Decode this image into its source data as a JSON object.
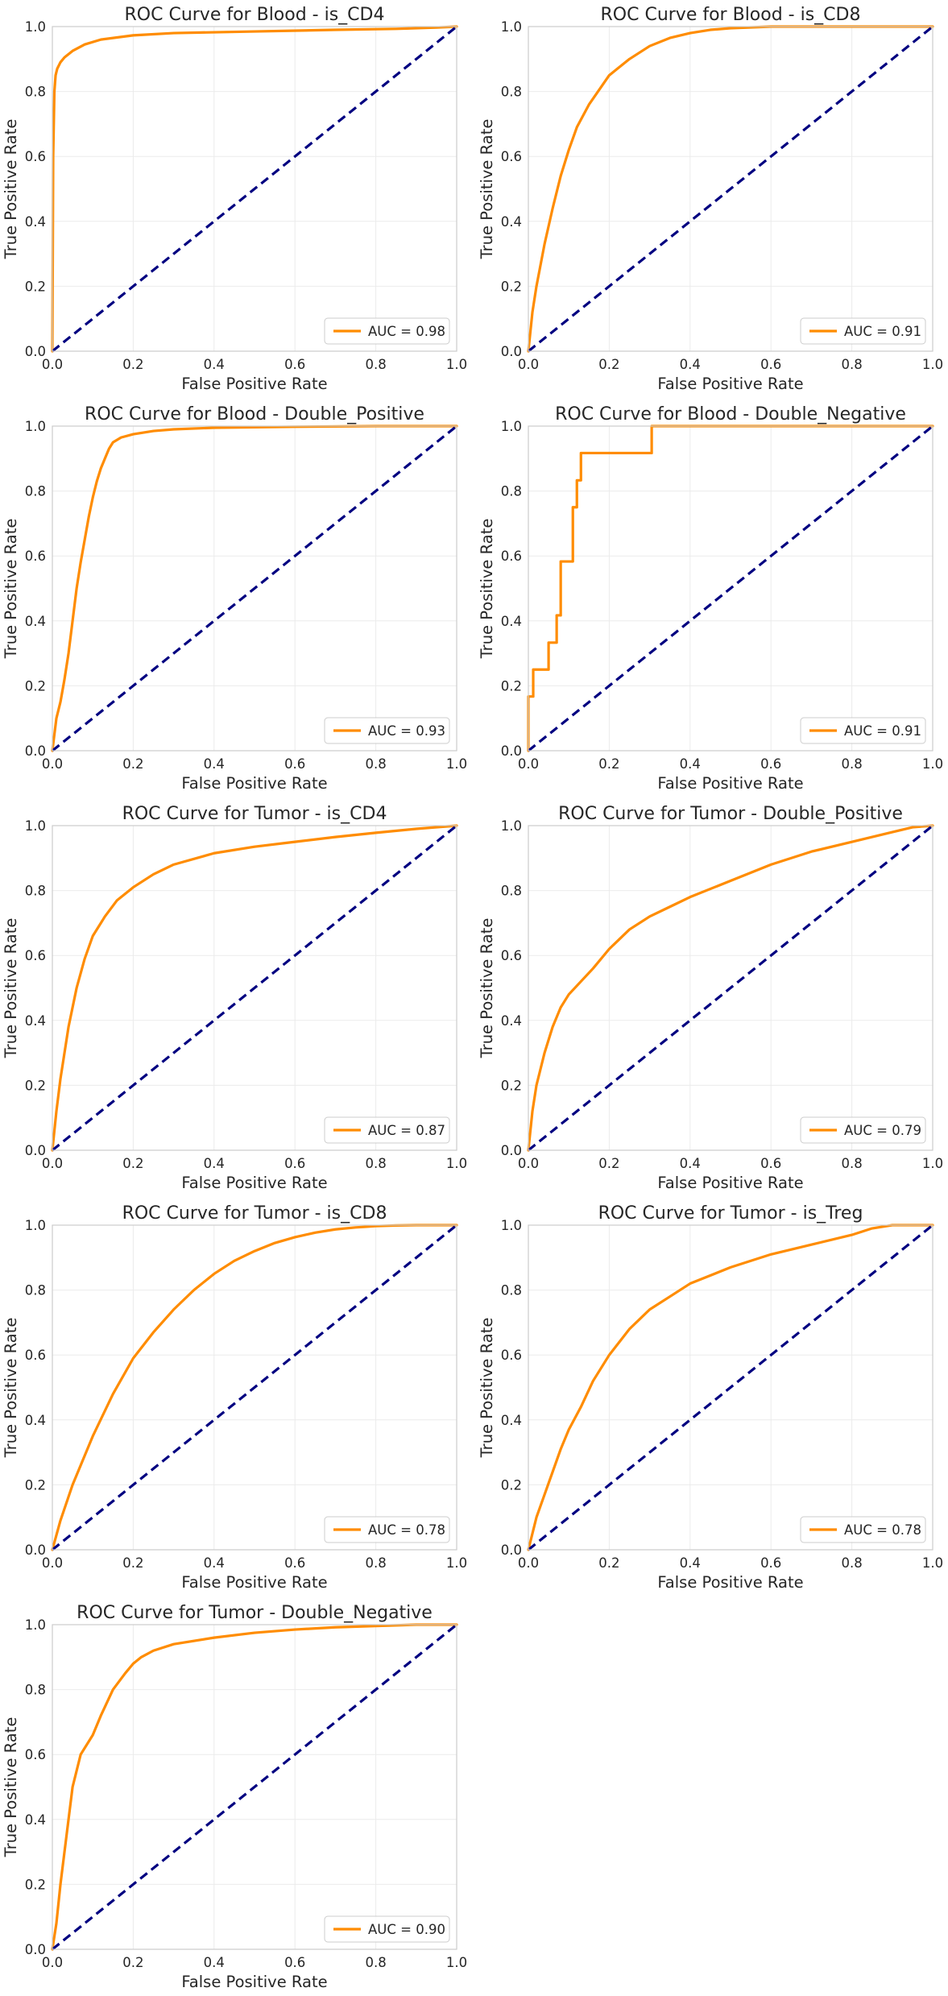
{
  "chart_data": [
    {
      "type": "line",
      "title": "ROC Curve for Blood - is_CD4",
      "xlabel": "False Positive Rate",
      "ylabel": "True Positive Rate",
      "xlim": [
        0,
        1
      ],
      "ylim": [
        0,
        1
      ],
      "xticks": [
        "0.0",
        "0.2",
        "0.4",
        "0.6",
        "0.8",
        "1.0"
      ],
      "yticks": [
        "0.0",
        "0.2",
        "0.4",
        "0.6",
        "0.8",
        "1.0"
      ],
      "grid": true,
      "legend_position": "lower-right",
      "series": [
        {
          "name": "AUC = 0.98",
          "color": "#ff8c00",
          "x": [
            0,
            0.002,
            0.005,
            0.008,
            0.012,
            0.02,
            0.03,
            0.05,
            0.08,
            0.12,
            0.2,
            0.3,
            0.5,
            0.7,
            0.85,
            0.95,
            1.0
          ],
          "y": [
            0,
            0.6,
            0.8,
            0.85,
            0.87,
            0.89,
            0.905,
            0.925,
            0.945,
            0.96,
            0.973,
            0.98,
            0.985,
            0.99,
            0.993,
            0.997,
            1.0
          ]
        },
        {
          "name": "",
          "color": "#000080",
          "style": "dashed",
          "x": [
            0,
            1
          ],
          "y": [
            0,
            1
          ]
        }
      ]
    },
    {
      "type": "line",
      "title": "ROC Curve for Blood - is_CD8",
      "xlabel": "False Positive Rate",
      "ylabel": "True Positive Rate",
      "xlim": [
        0,
        1
      ],
      "ylim": [
        0,
        1
      ],
      "xticks": [
        "0.0",
        "0.2",
        "0.4",
        "0.6",
        "0.8",
        "1.0"
      ],
      "yticks": [
        "0.0",
        "0.2",
        "0.4",
        "0.6",
        "0.8",
        "1.0"
      ],
      "grid": true,
      "legend_position": "lower-right",
      "series": [
        {
          "name": "AUC = 0.91",
          "color": "#ff8c00",
          "x": [
            0,
            0.01,
            0.02,
            0.04,
            0.06,
            0.08,
            0.1,
            0.12,
            0.15,
            0.2,
            0.25,
            0.3,
            0.35,
            0.4,
            0.45,
            0.5,
            0.6,
            0.8,
            1.0
          ],
          "y": [
            0,
            0.12,
            0.2,
            0.33,
            0.44,
            0.54,
            0.62,
            0.69,
            0.76,
            0.85,
            0.9,
            0.94,
            0.965,
            0.98,
            0.99,
            0.995,
            1.0,
            1.0,
            1.0
          ]
        },
        {
          "name": "",
          "color": "#000080",
          "style": "dashed",
          "x": [
            0,
            1
          ],
          "y": [
            0,
            1
          ]
        }
      ]
    },
    {
      "type": "line",
      "title": "ROC Curve for Blood - Double_Positive",
      "xlabel": "False Positive Rate",
      "ylabel": "True Positive Rate",
      "xlim": [
        0,
        1
      ],
      "ylim": [
        0,
        1
      ],
      "xticks": [
        "0.0",
        "0.2",
        "0.4",
        "0.6",
        "0.8",
        "1.0"
      ],
      "yticks": [
        "0.0",
        "0.2",
        "0.4",
        "0.6",
        "0.8",
        "1.0"
      ],
      "grid": true,
      "legend_position": "lower-right",
      "series": [
        {
          "name": "AUC = 0.93",
          "color": "#ff8c00",
          "x": [
            0,
            0.01,
            0.02,
            0.03,
            0.04,
            0.05,
            0.06,
            0.07,
            0.08,
            0.09,
            0.1,
            0.11,
            0.12,
            0.13,
            0.14,
            0.15,
            0.17,
            0.2,
            0.25,
            0.3,
            0.4,
            0.6,
            0.8,
            1.0
          ],
          "y": [
            0,
            0.1,
            0.15,
            0.22,
            0.3,
            0.4,
            0.5,
            0.58,
            0.65,
            0.72,
            0.78,
            0.83,
            0.87,
            0.9,
            0.93,
            0.95,
            0.965,
            0.975,
            0.985,
            0.99,
            0.995,
            0.998,
            1.0,
            1.0
          ]
        },
        {
          "name": "",
          "color": "#000080",
          "style": "dashed",
          "x": [
            0,
            1
          ],
          "y": [
            0,
            1
          ]
        }
      ]
    },
    {
      "type": "line",
      "title": "ROC Curve for Blood - Double_Negative",
      "xlabel": "False Positive Rate",
      "ylabel": "True Positive Rate",
      "xlim": [
        0,
        1
      ],
      "ylim": [
        0,
        1
      ],
      "xticks": [
        "0.0",
        "0.2",
        "0.4",
        "0.6",
        "0.8",
        "1.0"
      ],
      "yticks": [
        "0.0",
        "0.2",
        "0.4",
        "0.6",
        "0.8",
        "1.0"
      ],
      "grid": true,
      "legend_position": "lower-right",
      "series": [
        {
          "name": "AUC = 0.91",
          "color": "#ff8c00",
          "x": [
            0,
            0,
            0.012,
            0.012,
            0.05,
            0.05,
            0.07,
            0.07,
            0.08,
            0.08,
            0.11,
            0.11,
            0.12,
            0.12,
            0.13,
            0.13,
            0.305,
            0.305,
            1.0
          ],
          "y": [
            0,
            0.167,
            0.167,
            0.25,
            0.25,
            0.333,
            0.333,
            0.417,
            0.417,
            0.583,
            0.583,
            0.75,
            0.75,
            0.833,
            0.833,
            0.917,
            0.917,
            1.0,
            1.0
          ]
        },
        {
          "name": "",
          "color": "#000080",
          "style": "dashed",
          "x": [
            0,
            1
          ],
          "y": [
            0,
            1
          ]
        }
      ]
    },
    {
      "type": "line",
      "title": "ROC Curve for Tumor - is_CD4",
      "xlabel": "False Positive Rate",
      "ylabel": "True Positive Rate",
      "xlim": [
        0,
        1
      ],
      "ylim": [
        0,
        1
      ],
      "xticks": [
        "0.0",
        "0.2",
        "0.4",
        "0.6",
        "0.8",
        "1.0"
      ],
      "yticks": [
        "0.0",
        "0.2",
        "0.4",
        "0.6",
        "0.8",
        "1.0"
      ],
      "grid": true,
      "legend_position": "lower-right",
      "series": [
        {
          "name": "AUC = 0.87",
          "color": "#ff8c00",
          "x": [
            0,
            0.01,
            0.02,
            0.04,
            0.06,
            0.08,
            0.1,
            0.13,
            0.16,
            0.2,
            0.25,
            0.3,
            0.4,
            0.5,
            0.6,
            0.7,
            0.8,
            0.9,
            1.0
          ],
          "y": [
            0,
            0.12,
            0.22,
            0.38,
            0.5,
            0.59,
            0.66,
            0.72,
            0.77,
            0.81,
            0.85,
            0.88,
            0.915,
            0.935,
            0.95,
            0.965,
            0.978,
            0.99,
            1.0
          ]
        },
        {
          "name": "",
          "color": "#000080",
          "style": "dashed",
          "x": [
            0,
            1
          ],
          "y": [
            0,
            1
          ]
        }
      ]
    },
    {
      "type": "line",
      "title": "ROC Curve for Tumor - Double_Positive",
      "xlabel": "False Positive Rate",
      "ylabel": "True Positive Rate",
      "xlim": [
        0,
        1
      ],
      "ylim": [
        0,
        1
      ],
      "xticks": [
        "0.0",
        "0.2",
        "0.4",
        "0.6",
        "0.8",
        "1.0"
      ],
      "yticks": [
        "0.0",
        "0.2",
        "0.4",
        "0.6",
        "0.8",
        "1.0"
      ],
      "grid": true,
      "legend_position": "lower-right",
      "series": [
        {
          "name": "AUC = 0.79",
          "color": "#ff8c00",
          "x": [
            0,
            0.01,
            0.02,
            0.04,
            0.06,
            0.08,
            0.1,
            0.13,
            0.16,
            0.2,
            0.25,
            0.3,
            0.35,
            0.4,
            0.5,
            0.6,
            0.7,
            0.8,
            0.9,
            0.95,
            1.0
          ],
          "y": [
            0,
            0.12,
            0.2,
            0.3,
            0.38,
            0.44,
            0.48,
            0.52,
            0.56,
            0.62,
            0.68,
            0.72,
            0.75,
            0.78,
            0.83,
            0.88,
            0.92,
            0.95,
            0.98,
            0.995,
            1.0
          ]
        },
        {
          "name": "",
          "color": "#000080",
          "style": "dashed",
          "x": [
            0,
            1
          ],
          "y": [
            0,
            1
          ]
        }
      ]
    },
    {
      "type": "line",
      "title": "ROC Curve for Tumor - is_CD8",
      "xlabel": "False Positive Rate",
      "ylabel": "True Positive Rate",
      "xlim": [
        0,
        1
      ],
      "ylim": [
        0,
        1
      ],
      "xticks": [
        "0.0",
        "0.2",
        "0.4",
        "0.6",
        "0.8",
        "1.0"
      ],
      "yticks": [
        "0.0",
        "0.2",
        "0.4",
        "0.6",
        "0.8",
        "1.0"
      ],
      "grid": true,
      "legend_position": "lower-right",
      "series": [
        {
          "name": "AUC = 0.78",
          "color": "#ff8c00",
          "x": [
            0,
            0.02,
            0.05,
            0.1,
            0.15,
            0.2,
            0.25,
            0.3,
            0.35,
            0.4,
            0.45,
            0.5,
            0.55,
            0.6,
            0.65,
            0.7,
            0.75,
            0.8,
            0.85,
            0.9,
            1.0
          ],
          "y": [
            0,
            0.09,
            0.2,
            0.35,
            0.48,
            0.59,
            0.67,
            0.74,
            0.8,
            0.85,
            0.89,
            0.92,
            0.945,
            0.963,
            0.977,
            0.987,
            0.993,
            0.997,
            0.999,
            1.0,
            1.0
          ]
        },
        {
          "name": "",
          "color": "#000080",
          "style": "dashed",
          "x": [
            0,
            1
          ],
          "y": [
            0,
            1
          ]
        }
      ]
    },
    {
      "type": "line",
      "title": "ROC Curve for Tumor - is_Treg",
      "xlabel": "False Positive Rate",
      "ylabel": "True Positive Rate",
      "xlim": [
        0,
        1
      ],
      "ylim": [
        0,
        1
      ],
      "xticks": [
        "0.0",
        "0.2",
        "0.4",
        "0.6",
        "0.8",
        "1.0"
      ],
      "yticks": [
        "0.0",
        "0.2",
        "0.4",
        "0.6",
        "0.8",
        "1.0"
      ],
      "grid": true,
      "legend_position": "lower-right",
      "series": [
        {
          "name": "AUC = 0.78",
          "color": "#ff8c00",
          "x": [
            0,
            0.01,
            0.02,
            0.04,
            0.06,
            0.08,
            0.1,
            0.13,
            0.16,
            0.2,
            0.25,
            0.3,
            0.35,
            0.4,
            0.5,
            0.6,
            0.7,
            0.8,
            0.85,
            0.9,
            1.0
          ],
          "y": [
            0,
            0.05,
            0.1,
            0.17,
            0.24,
            0.31,
            0.37,
            0.44,
            0.52,
            0.6,
            0.68,
            0.74,
            0.78,
            0.82,
            0.87,
            0.91,
            0.94,
            0.97,
            0.99,
            1.0,
            1.0
          ]
        },
        {
          "name": "",
          "color": "#000080",
          "style": "dashed",
          "x": [
            0,
            1
          ],
          "y": [
            0,
            1
          ]
        }
      ]
    },
    {
      "type": "line",
      "title": "ROC Curve for Tumor - Double_Negative",
      "xlabel": "False Positive Rate",
      "ylabel": "True Positive Rate",
      "xlim": [
        0,
        1
      ],
      "ylim": [
        0,
        1
      ],
      "xticks": [
        "0.0",
        "0.2",
        "0.4",
        "0.6",
        "0.8",
        "1.0"
      ],
      "yticks": [
        "0.0",
        "0.2",
        "0.4",
        "0.6",
        "0.8",
        "1.0"
      ],
      "grid": true,
      "legend_position": "lower-right",
      "series": [
        {
          "name": "AUC = 0.90",
          "color": "#ff8c00",
          "x": [
            0,
            0.01,
            0.02,
            0.03,
            0.04,
            0.05,
            0.06,
            0.07,
            0.08,
            0.1,
            0.12,
            0.15,
            0.18,
            0.2,
            0.22,
            0.25,
            0.3,
            0.4,
            0.5,
            0.6,
            0.7,
            0.8,
            0.9,
            1.0
          ],
          "y": [
            0,
            0.08,
            0.2,
            0.3,
            0.4,
            0.5,
            0.55,
            0.6,
            0.62,
            0.66,
            0.72,
            0.8,
            0.85,
            0.88,
            0.9,
            0.92,
            0.94,
            0.96,
            0.975,
            0.985,
            0.992,
            0.996,
            1.0,
            1.0
          ]
        },
        {
          "name": "",
          "color": "#000080",
          "style": "dashed",
          "x": [
            0,
            1
          ],
          "y": [
            0,
            1
          ]
        }
      ]
    }
  ]
}
